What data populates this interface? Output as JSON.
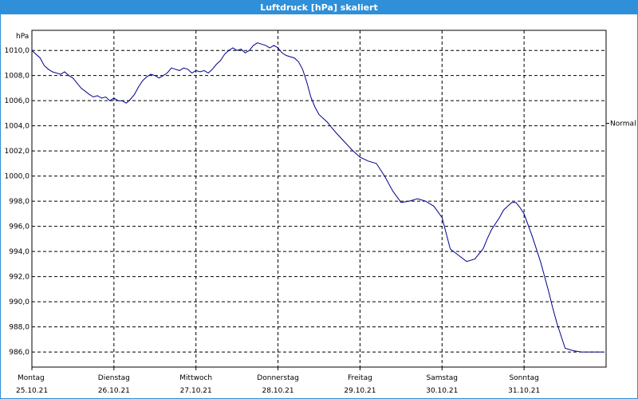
{
  "window": {
    "title": "Luftdruck [hPa] skaliert"
  },
  "chart_data": {
    "type": "line",
    "title": "Luftdruck [hPa] skaliert",
    "ylabel": "hPa",
    "xlabel": "",
    "ylim": [
      984.8,
      1011.6
    ],
    "xlim": [
      0,
      7
    ],
    "grid": true,
    "y_ticks": [
      "1010,0",
      "1008,0",
      "1006,0",
      "1004,0",
      "1002,0",
      "1000,0",
      "998,0",
      "996,0",
      "994,0",
      "992,0",
      "990,0",
      "988,0",
      "986,0"
    ],
    "y_tick_values": [
      1010,
      1008,
      1006,
      1004,
      1002,
      1000,
      998,
      996,
      994,
      992,
      990,
      988,
      986
    ],
    "x_ticks": [
      {
        "day": "Montag",
        "date": "25.10.21"
      },
      {
        "day": "Dienstag",
        "date": "26.10.21"
      },
      {
        "day": "Mittwoch",
        "date": "27.10.21"
      },
      {
        "day": "Donnerstag",
        "date": "28.10.21"
      },
      {
        "day": "Freitag",
        "date": "29.10.21"
      },
      {
        "day": "Samstag",
        "date": "30.10.21"
      },
      {
        "day": "Sonntag",
        "date": "31.10.21"
      }
    ],
    "reference_line": {
      "label": "Normal",
      "value": 1004.2
    },
    "line_color": "#00008b",
    "series": [
      {
        "x": [
          0.0,
          0.05,
          0.1,
          0.15,
          0.2,
          0.25,
          0.35,
          0.4,
          0.45,
          0.5,
          0.6,
          0.7,
          0.75,
          0.8,
          0.85,
          0.9,
          0.95,
          1.0,
          1.05,
          1.1,
          1.15,
          1.2,
          1.25,
          1.3,
          1.35,
          1.4,
          1.45,
          1.5,
          1.55,
          1.6,
          1.65,
          1.7,
          1.75,
          1.8,
          1.85,
          1.9,
          1.95,
          2.0,
          2.05,
          2.1,
          2.15,
          2.2,
          2.25,
          2.3,
          2.35,
          2.4,
          2.45,
          2.5,
          2.55,
          2.6,
          2.65,
          2.7,
          2.75,
          2.8,
          2.85,
          2.9,
          2.95,
          3.0,
          3.05,
          3.1,
          3.15,
          3.2,
          3.25,
          3.3,
          3.35,
          3.4,
          3.45,
          3.5,
          3.55,
          3.6,
          3.65,
          3.7,
          3.8,
          3.9,
          4.0,
          4.1,
          4.2,
          4.3,
          4.4,
          4.5,
          4.6,
          4.7,
          4.8,
          4.9,
          5.0,
          5.1,
          5.2,
          5.3,
          5.4,
          5.5,
          5.55,
          5.6,
          5.65,
          5.7,
          5.75,
          5.8,
          5.85,
          5.9,
          5.95,
          6.0,
          6.1,
          6.2,
          6.25,
          6.3,
          6.35,
          6.4,
          6.5,
          6.6,
          6.7,
          6.8,
          6.9,
          6.96
        ],
        "y": [
          1010.0,
          1009.7,
          1009.4,
          1008.8,
          1008.5,
          1008.3,
          1008.1,
          1008.3,
          1008.0,
          1007.8,
          1007.0,
          1006.5,
          1006.3,
          1006.4,
          1006.2,
          1006.3,
          1006.0,
          1006.2,
          1006.0,
          1006.0,
          1005.8,
          1006.1,
          1006.5,
          1007.1,
          1007.6,
          1007.9,
          1008.1,
          1008.0,
          1007.8,
          1008.0,
          1008.2,
          1008.6,
          1008.5,
          1008.4,
          1008.6,
          1008.5,
          1008.2,
          1008.4,
          1008.3,
          1008.4,
          1008.2,
          1008.5,
          1008.9,
          1009.2,
          1009.7,
          1010.0,
          1010.2,
          1010.0,
          1010.1,
          1009.8,
          1010.0,
          1010.4,
          1010.6,
          1010.5,
          1010.4,
          1010.2,
          1010.4,
          1010.2,
          1009.8,
          1009.6,
          1009.5,
          1009.4,
          1009.1,
          1008.5,
          1007.5,
          1006.3,
          1005.5,
          1004.9,
          1004.6,
          1004.3,
          1003.9,
          1003.5,
          1002.8,
          1002.1,
          1001.5,
          1001.2,
          1001.0,
          1000.0,
          998.8,
          997.9,
          998.0,
          998.2,
          998.0,
          997.6,
          996.7,
          994.2,
          993.7,
          993.2,
          993.4,
          994.2,
          995.0,
          995.7,
          996.2,
          996.7,
          997.3,
          997.6,
          997.9,
          997.9,
          997.5,
          997.0,
          995.2,
          993.2,
          992.0,
          990.8,
          989.5,
          988.3,
          986.3,
          986.1,
          986.0,
          986.0,
          986.0,
          986.0
        ]
      }
    ]
  }
}
